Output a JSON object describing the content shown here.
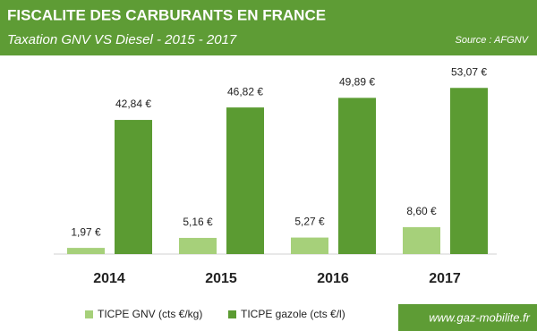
{
  "chart_data": {
    "type": "bar",
    "title": "FISCALITE DES CARBURANTS EN FRANCE",
    "subtitle": "Taxation GNV VS Diesel - 2015 - 2017",
    "source": "Source : AFGNV",
    "footer": "www.gaz-mobilite.fr",
    "categories": [
      "2014",
      "2015",
      "2016",
      "2017"
    ],
    "series": [
      {
        "name": "TICPE GNV (cts €/kg)",
        "color": "#a6d07a",
        "values": [
          1.97,
          5.16,
          5.27,
          8.6
        ],
        "value_labels": [
          "1,97 €",
          "5,16 €",
          "5,27 €",
          "8,60 €"
        ]
      },
      {
        "name": "TICPE gazole (cts €/l)",
        "color": "#5b9b32",
        "values": [
          42.84,
          46.82,
          49.89,
          53.07
        ],
        "value_labels": [
          "42,84 €",
          "46,82 €",
          "49,89 €",
          "53,07 €"
        ]
      }
    ]
  }
}
